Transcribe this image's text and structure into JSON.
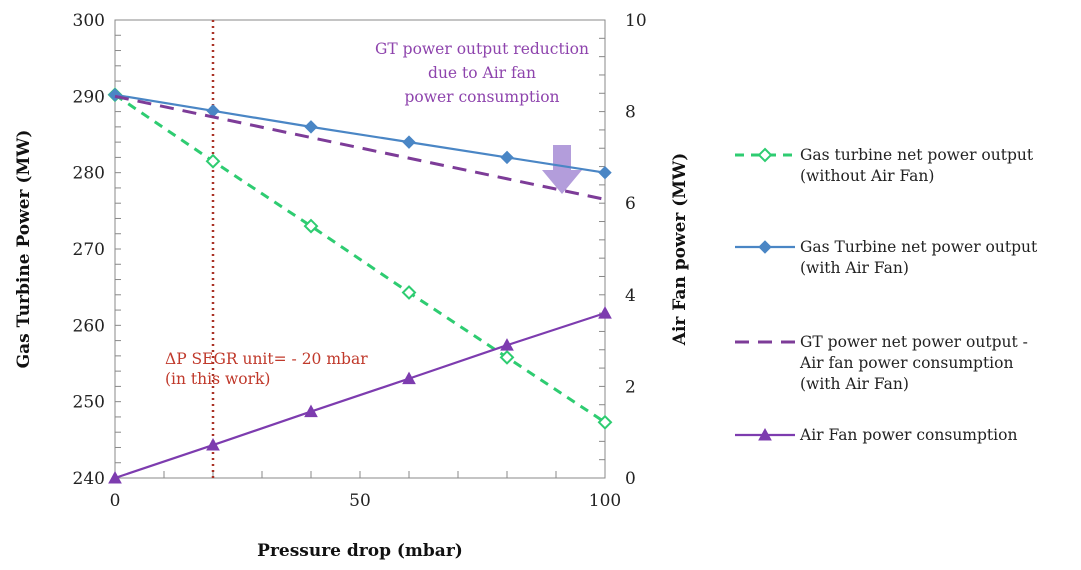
{
  "chart_data": {
    "type": "line",
    "xlabel": "Pressure drop (mbar)",
    "ylabel": "Gas Turbine Power (MW)",
    "y2label": "Air Fan power (MW)",
    "xlim": [
      0,
      100
    ],
    "ylim": [
      240,
      300
    ],
    "y2lim": [
      0,
      10
    ],
    "xticks": [
      "0",
      "50",
      "100"
    ],
    "yticks": [
      "240",
      "250",
      "260",
      "270",
      "280",
      "290",
      "300"
    ],
    "y2ticks": [
      "0",
      "2",
      "4",
      "6",
      "8",
      "10"
    ],
    "grid": false,
    "legend_position": "right",
    "series": [
      {
        "name": "Gas turbine net power output (without Air Fan)",
        "legend_lines": [
          "Gas turbine net power output",
          "(without Air Fan)"
        ],
        "axis": "left",
        "style": "dashed",
        "marker": "diamond-open",
        "color": "#2ecc71",
        "x": [
          0,
          20,
          40,
          60,
          80,
          100
        ],
        "y": [
          290.2,
          281.5,
          273.0,
          264.3,
          255.8,
          247.3
        ]
      },
      {
        "name": "Gas Turbine net power output (with Air Fan)",
        "legend_lines": [
          "Gas Turbine net power output",
          "(with Air Fan)"
        ],
        "axis": "left",
        "style": "solid",
        "marker": "diamond-filled",
        "color": "#4a86c5",
        "x": [
          0,
          20,
          40,
          60,
          80,
          100
        ],
        "y": [
          290.2,
          288.1,
          286.0,
          284.0,
          282.0,
          280.0
        ]
      },
      {
        "name": "GT power net power output - Air fan power consumption (with Air Fan)",
        "legend_lines": [
          "GT power net power output -",
          "Air fan power consumption",
          "(with Air Fan)"
        ],
        "axis": "left",
        "style": "dashed",
        "marker": "none",
        "color": "#7d3c98",
        "x": [
          0,
          100
        ],
        "y": [
          290.0,
          276.5
        ]
      },
      {
        "name": "Air Fan power consumption",
        "legend_lines": [
          "Air Fan power consumption"
        ],
        "axis": "right",
        "style": "solid",
        "marker": "triangle",
        "color": "#7d3caf",
        "x": [
          0,
          20,
          40,
          60,
          80,
          100
        ],
        "y": [
          0.0,
          0.72,
          1.45,
          2.17,
          2.9,
          3.6
        ]
      }
    ],
    "annotations": {
      "vline_x": 20,
      "vline_color": "#a93226",
      "vline_text": [
        "ΔP SEGR unit= - 20 mbar",
        "(in this work)"
      ],
      "reduction_text": [
        "GT power output reduction",
        "due to Air fan",
        "power consumption"
      ],
      "arrow_color": "#b39ddb"
    }
  }
}
